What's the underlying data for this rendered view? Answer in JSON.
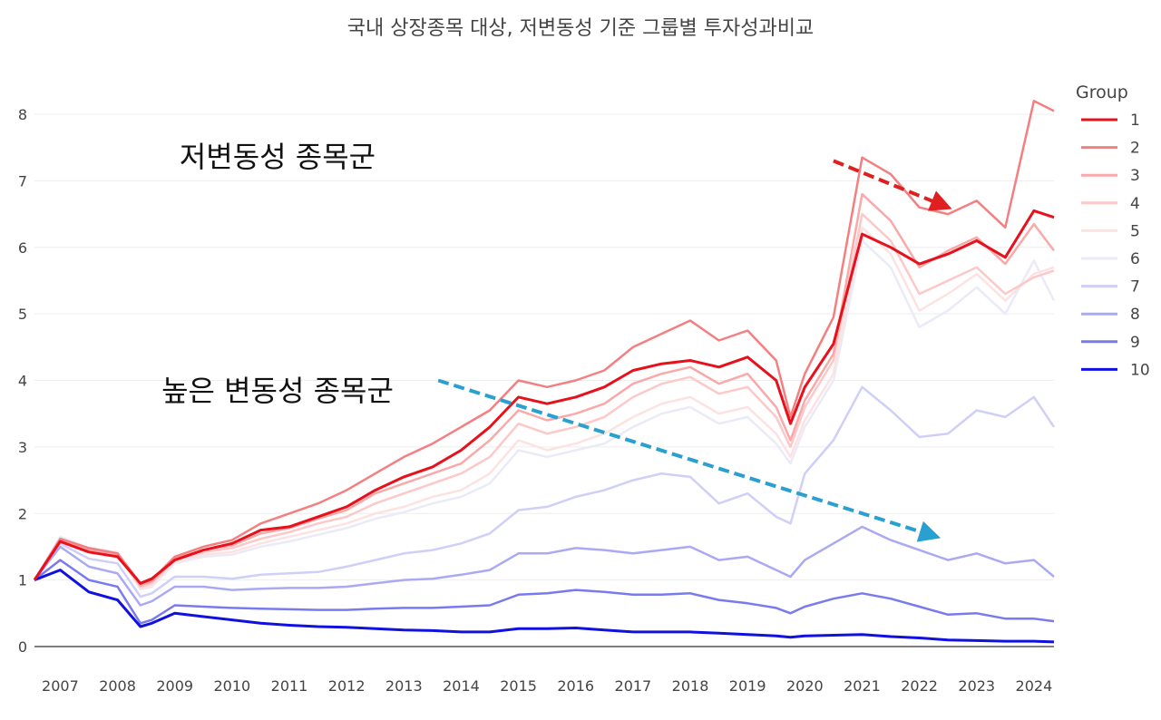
{
  "chart_data": {
    "type": "line",
    "title": "국내 상장종목 대상, 저변동성 기준 그룹별 투자성과비교",
    "xlabel": "",
    "ylabel": "",
    "xlim": [
      2006.55,
      2024.35
    ],
    "ylim": [
      -0.15,
      8.6
    ],
    "y_ticks": [
      0,
      1,
      2,
      3,
      4,
      5,
      6,
      7,
      8
    ],
    "x_ticks": [
      2007,
      2008,
      2009,
      2010,
      2011,
      2012,
      2013,
      2014,
      2015,
      2016,
      2017,
      2018,
      2019,
      2020,
      2021,
      2022,
      2023,
      2024
    ],
    "x_tick_labels": [
      "2007",
      "2008",
      "2009",
      "2010",
      "2011",
      "2012",
      "2013",
      "2014",
      "2015",
      "2016",
      "2017",
      "2018",
      "2019",
      "2020",
      "2021",
      "2022",
      "2023",
      "2024"
    ],
    "legend": {
      "title": "Group",
      "position": "right"
    },
    "x": [
      2006.55,
      2007.0,
      2007.5,
      2008.0,
      2008.4,
      2008.6,
      2009.0,
      2009.5,
      2010.0,
      2010.5,
      2011.0,
      2011.5,
      2012.0,
      2012.5,
      2013.0,
      2013.5,
      2014.0,
      2014.5,
      2015.0,
      2015.5,
      2016.0,
      2016.5,
      2017.0,
      2017.5,
      2018.0,
      2018.5,
      2019.0,
      2019.5,
      2019.75,
      2020.0,
      2020.5,
      2021.0,
      2021.5,
      2022.0,
      2022.5,
      2023.0,
      2023.5,
      2024.0,
      2024.35
    ],
    "series": [
      {
        "name": "1",
        "color": "#e8101a",
        "values": [
          1.0,
          1.58,
          1.42,
          1.35,
          0.95,
          1.02,
          1.3,
          1.45,
          1.55,
          1.75,
          1.8,
          1.95,
          2.1,
          2.35,
          2.55,
          2.7,
          2.95,
          3.3,
          3.75,
          3.65,
          3.75,
          3.9,
          4.15,
          4.25,
          4.3,
          4.2,
          4.35,
          4.0,
          3.35,
          3.9,
          4.55,
          6.2,
          6.0,
          5.75,
          5.9,
          6.1,
          5.85,
          6.55,
          6.45
        ]
      },
      {
        "name": "2",
        "color": "#f47f80",
        "values": [
          1.0,
          1.62,
          1.48,
          1.4,
          0.95,
          1.0,
          1.35,
          1.5,
          1.6,
          1.85,
          2.0,
          2.15,
          2.35,
          2.6,
          2.85,
          3.05,
          3.3,
          3.55,
          4.0,
          3.9,
          4.0,
          4.15,
          4.5,
          4.7,
          4.9,
          4.6,
          4.75,
          4.3,
          3.45,
          4.1,
          4.95,
          7.35,
          7.1,
          6.6,
          6.5,
          6.7,
          6.3,
          8.2,
          8.05
        ]
      },
      {
        "name": "3",
        "color": "#f9a9a9",
        "values": [
          1.0,
          1.6,
          1.45,
          1.38,
          0.92,
          0.98,
          1.32,
          1.45,
          1.52,
          1.7,
          1.78,
          1.92,
          2.05,
          2.3,
          2.45,
          2.6,
          2.75,
          3.1,
          3.55,
          3.4,
          3.5,
          3.65,
          3.95,
          4.1,
          4.2,
          3.95,
          4.1,
          3.6,
          3.1,
          3.7,
          4.4,
          6.8,
          6.4,
          5.7,
          5.95,
          6.15,
          5.75,
          6.35,
          5.95
        ]
      },
      {
        "name": "4",
        "color": "#fcc8c8",
        "values": [
          1.0,
          1.6,
          1.45,
          1.38,
          0.9,
          0.95,
          1.3,
          1.42,
          1.48,
          1.62,
          1.72,
          1.85,
          1.95,
          2.15,
          2.3,
          2.45,
          2.6,
          2.85,
          3.35,
          3.2,
          3.3,
          3.45,
          3.75,
          3.95,
          4.05,
          3.8,
          3.9,
          3.45,
          3.0,
          3.6,
          4.3,
          6.5,
          6.1,
          5.3,
          5.5,
          5.7,
          5.3,
          5.55,
          5.65
        ]
      },
      {
        "name": "5",
        "color": "#fde2e2",
        "values": [
          1.0,
          1.62,
          1.45,
          1.4,
          0.88,
          0.92,
          1.28,
          1.38,
          1.42,
          1.55,
          1.65,
          1.75,
          1.85,
          2.0,
          2.1,
          2.25,
          2.35,
          2.6,
          3.1,
          2.95,
          3.05,
          3.2,
          3.45,
          3.65,
          3.75,
          3.5,
          3.6,
          3.2,
          2.85,
          3.4,
          4.1,
          6.3,
          5.9,
          5.05,
          5.3,
          5.6,
          5.2,
          5.6,
          5.7
        ]
      },
      {
        "name": "6",
        "color": "#eaeaf8",
        "values": [
          1.0,
          1.65,
          1.48,
          1.42,
          0.86,
          0.9,
          1.25,
          1.35,
          1.38,
          1.5,
          1.58,
          1.68,
          1.78,
          1.92,
          2.02,
          2.15,
          2.25,
          2.45,
          2.95,
          2.85,
          2.95,
          3.05,
          3.3,
          3.5,
          3.6,
          3.35,
          3.45,
          3.05,
          2.75,
          3.3,
          4.0,
          6.1,
          5.7,
          4.8,
          5.05,
          5.4,
          5.0,
          5.8,
          5.2
        ]
      },
      {
        "name": "7",
        "color": "#cfcff8",
        "values": [
          1.0,
          1.55,
          1.32,
          1.25,
          0.75,
          0.8,
          1.05,
          1.05,
          1.02,
          1.08,
          1.1,
          1.12,
          1.2,
          1.3,
          1.4,
          1.45,
          1.55,
          1.7,
          2.05,
          2.1,
          2.25,
          2.35,
          2.5,
          2.6,
          2.55,
          2.15,
          2.3,
          1.95,
          1.85,
          2.6,
          3.1,
          3.9,
          3.55,
          3.15,
          3.2,
          3.55,
          3.45,
          3.75,
          3.3
        ]
      },
      {
        "name": "8",
        "color": "#a9a9f4",
        "values": [
          1.0,
          1.5,
          1.2,
          1.1,
          0.62,
          0.68,
          0.9,
          0.9,
          0.85,
          0.87,
          0.88,
          0.88,
          0.9,
          0.95,
          1.0,
          1.02,
          1.08,
          1.15,
          1.4,
          1.4,
          1.48,
          1.45,
          1.4,
          1.45,
          1.5,
          1.3,
          1.35,
          1.15,
          1.05,
          1.3,
          1.55,
          1.8,
          1.6,
          1.45,
          1.3,
          1.4,
          1.25,
          1.3,
          1.05
        ]
      },
      {
        "name": "9",
        "color": "#7a7af0",
        "values": [
          1.0,
          1.3,
          1.0,
          0.9,
          0.35,
          0.4,
          0.62,
          0.6,
          0.58,
          0.57,
          0.56,
          0.55,
          0.55,
          0.57,
          0.58,
          0.58,
          0.6,
          0.62,
          0.78,
          0.8,
          0.85,
          0.82,
          0.78,
          0.78,
          0.8,
          0.7,
          0.65,
          0.58,
          0.5,
          0.6,
          0.72,
          0.8,
          0.72,
          0.6,
          0.48,
          0.5,
          0.42,
          0.42,
          0.38
        ]
      },
      {
        "name": "10",
        "color": "#1010e0",
        "values": [
          1.0,
          1.15,
          0.82,
          0.7,
          0.3,
          0.35,
          0.5,
          0.45,
          0.4,
          0.35,
          0.32,
          0.3,
          0.29,
          0.27,
          0.25,
          0.24,
          0.22,
          0.22,
          0.27,
          0.27,
          0.28,
          0.25,
          0.22,
          0.22,
          0.22,
          0.2,
          0.18,
          0.16,
          0.14,
          0.16,
          0.17,
          0.18,
          0.15,
          0.13,
          0.1,
          0.09,
          0.08,
          0.08,
          0.07
        ]
      }
    ],
    "annotations": [
      {
        "text": "저변동성 종목군",
        "arrow_color": "#e02020",
        "from": [
          2020.5,
          7.3
        ],
        "to": [
          2022.5,
          6.6
        ]
      },
      {
        "text": "높은 변동성 종목군",
        "arrow_color": "#2aa0d0",
        "from": [
          2013.6,
          4.0
        ],
        "to": [
          2022.3,
          1.65
        ]
      }
    ]
  }
}
